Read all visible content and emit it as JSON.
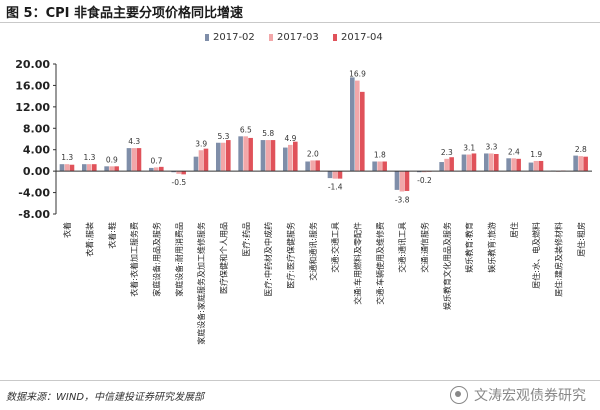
{
  "title": "图 5：CPI 非食品主要分项价格同比增速",
  "footer": {
    "source": "数据来源：WIND，中信建投证券研究发展部",
    "watermark": "文涛宏观债券研究"
  },
  "chart_data": {
    "type": "bar",
    "title": "",
    "xlabel": "",
    "ylabel": "",
    "ylim": [
      -8,
      20
    ],
    "yticks": [
      "20.00",
      "16.00",
      "12.00",
      "8.00",
      "4.00",
      "0.00",
      "-4.00",
      "-8.00"
    ],
    "grid": false,
    "legend_position": "top",
    "colors": [
      "#7f8ea9",
      "#f2a7a9",
      "#e0525a"
    ],
    "categories": [
      "衣着",
      "衣着:服装",
      "衣着:鞋",
      "衣着:衣着加工服务费",
      "家庭设备:用品及服务",
      "家庭设备:耐用消费品",
      "家庭设备:家庭服务及加工维修服务",
      "医疗保健和个人用品",
      "医疗:药品",
      "医疗:中药材及中成药",
      "医疗:医疗保健服务",
      "交通和通讯:服务",
      "交通:交通工具",
      "交通:车用燃料及零配件",
      "交通:车辆使用及维修费",
      "交通:通讯工具",
      "交通:通信服务",
      "娱乐教育文化用品及服务",
      "娱乐教育:教育",
      "娱乐教育:旅游",
      "居住",
      "居住:水、电及燃料",
      "居住:建房及装修材料",
      "居住:租房"
    ],
    "series": [
      {
        "name": "2017-02",
        "values": [
          1.3,
          1.3,
          0.9,
          4.3,
          0.6,
          -0.2,
          2.7,
          5.3,
          6.5,
          5.8,
          4.4,
          1.8,
          -1.3,
          17.5,
          1.8,
          -3.5,
          -0.2,
          1.7,
          3.1,
          3.3,
          2.4,
          1.6,
          0.1,
          2.9
        ]
      },
      {
        "name": "2017-03",
        "values": [
          1.3,
          1.3,
          0.9,
          4.3,
          0.7,
          -0.5,
          3.9,
          5.3,
          6.5,
          5.8,
          4.9,
          2.0,
          -1.4,
          16.9,
          1.8,
          -3.8,
          -0.2,
          2.3,
          3.1,
          3.3,
          2.4,
          1.9,
          0.0,
          2.8
        ]
      },
      {
        "name": "2017-04",
        "values": [
          1.2,
          1.3,
          0.9,
          4.3,
          0.8,
          -0.6,
          4.2,
          5.8,
          6.2,
          5.8,
          5.5,
          2.0,
          -1.4,
          14.8,
          1.8,
          -3.7,
          -0.1,
          2.6,
          3.3,
          3.2,
          2.3,
          1.9,
          0.1,
          2.7
        ]
      }
    ],
    "data_labels": {
      "series": "2017-03",
      "values": [
        1.3,
        1.3,
        0.9,
        4.3,
        0.7,
        -0.5,
        3.9,
        5.3,
        6.5,
        5.8,
        4.9,
        2.0,
        -1.4,
        16.9,
        1.8,
        -3.8,
        -0.2,
        2.3,
        3.1,
        3.3,
        2.4,
        1.9,
        null,
        2.8
      ],
      "text": [
        "1.3",
        "1.3",
        "0.9",
        "4.3",
        "0.7",
        "-0.5",
        "3.9",
        "5.3",
        "6.5",
        "5.8",
        "4.9",
        "2.0",
        "-1.4",
        "16.9",
        "1.8",
        "-3.8",
        "-0.2",
        "2.3",
        "3.1",
        "3.3",
        "2.4",
        "1.9",
        "",
        "2.8"
      ]
    }
  }
}
